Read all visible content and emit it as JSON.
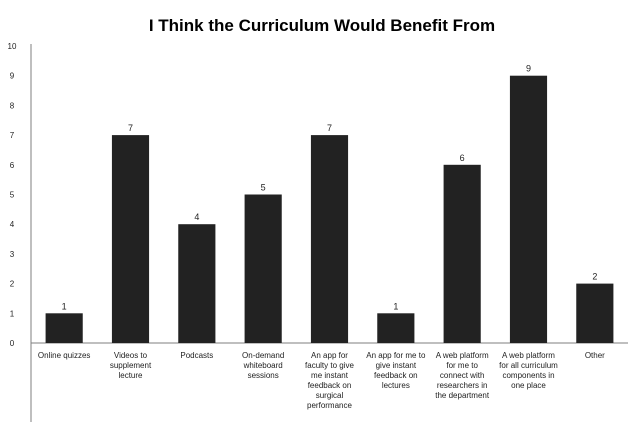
{
  "chart_data": {
    "type": "bar",
    "title": "I Think the Curriculum Would Benefit From",
    "xlabel": "",
    "ylabel": "",
    "ylim": [
      0,
      10
    ],
    "yticks": [
      0,
      1,
      2,
      3,
      4,
      5,
      6,
      7,
      8,
      9,
      10
    ],
    "grid": false,
    "legend": "none",
    "bar_color": "#222222",
    "categories": [
      [
        "Online quizzes"
      ],
      [
        "Videos to",
        "supplement",
        "lecture"
      ],
      [
        "Podcasts"
      ],
      [
        "On-demand",
        "whiteboard",
        "sessions"
      ],
      [
        "An app for",
        "faculty to give",
        "me instant",
        "feedback on",
        "surgical",
        "performance"
      ],
      [
        "An app for me to",
        "give instant",
        "feedback on",
        "lectures"
      ],
      [
        "A web platform",
        "for me to",
        "connect with",
        "researchers in",
        "the department"
      ],
      [
        "A web platform",
        "for all curriculum",
        "components in",
        "one place"
      ],
      [
        "Other"
      ]
    ],
    "values": [
      1,
      7,
      4,
      5,
      7,
      1,
      6,
      9,
      2
    ]
  }
}
